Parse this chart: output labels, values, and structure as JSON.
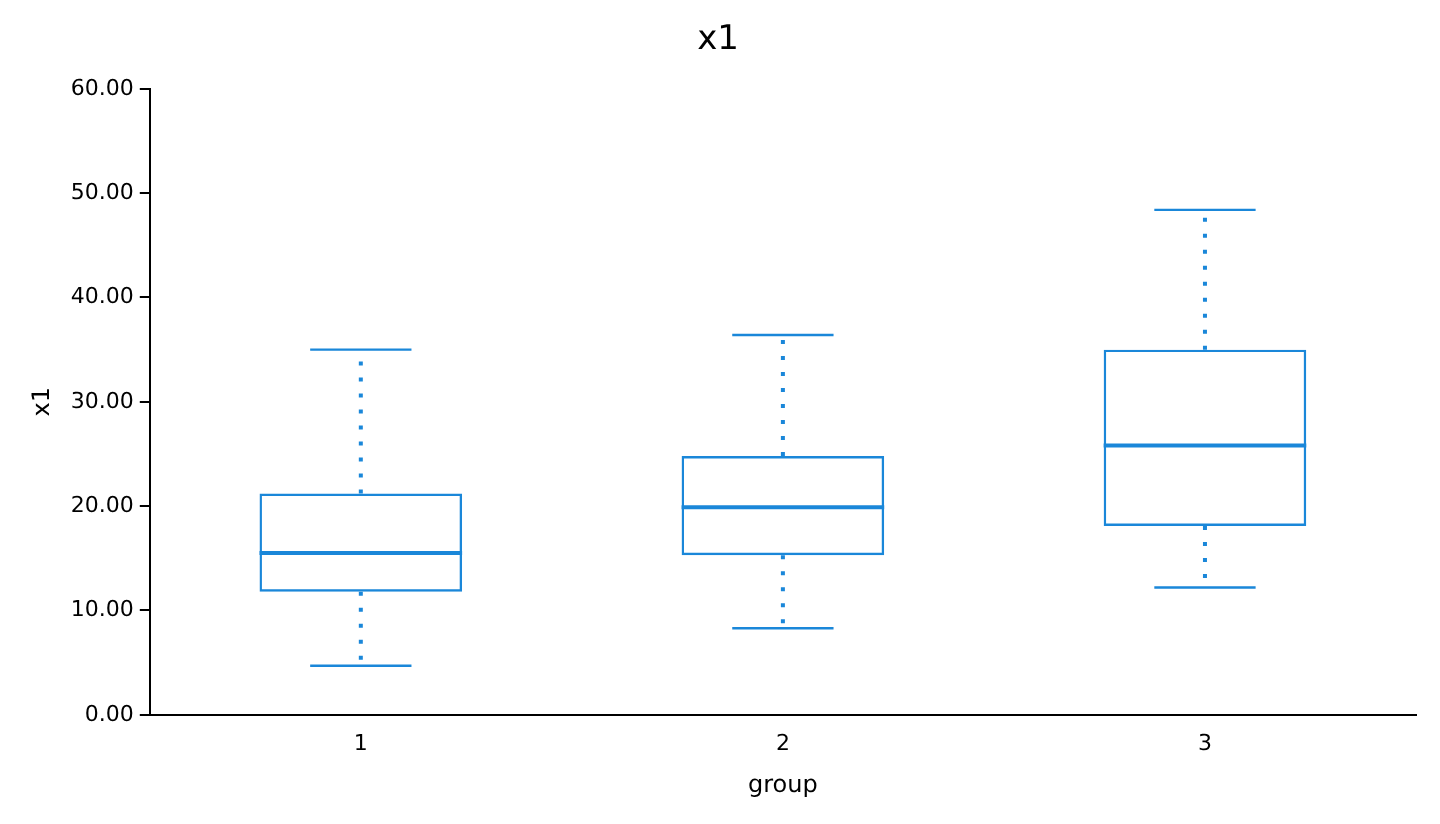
{
  "chart_data": {
    "type": "box",
    "title": "x1",
    "xlabel": "group",
    "ylabel": "x1",
    "categories": [
      "1",
      "2",
      "3"
    ],
    "color": "#1a87d9",
    "boxes": [
      {
        "low": 4.7,
        "q1": 11.8,
        "median": 15.5,
        "q3": 21.2,
        "high": 35.0
      },
      {
        "low": 8.3,
        "q1": 15.3,
        "median": 19.9,
        "q3": 24.8,
        "high": 36.4
      },
      {
        "low": 12.2,
        "q1": 18.1,
        "median": 25.8,
        "q3": 35.0,
        "high": 48.4
      }
    ],
    "ylim": [
      0,
      60
    ],
    "yticks": [
      {
        "value": 0,
        "label": "0.00"
      },
      {
        "value": 10,
        "label": "10.00"
      },
      {
        "value": 20,
        "label": "20.00"
      },
      {
        "value": 30,
        "label": "30.00"
      },
      {
        "value": 40,
        "label": "40.00"
      },
      {
        "value": 50,
        "label": "50.00"
      },
      {
        "value": 60,
        "label": "60.00"
      }
    ],
    "grid": false,
    "legend": false,
    "line_style": "dotted"
  }
}
